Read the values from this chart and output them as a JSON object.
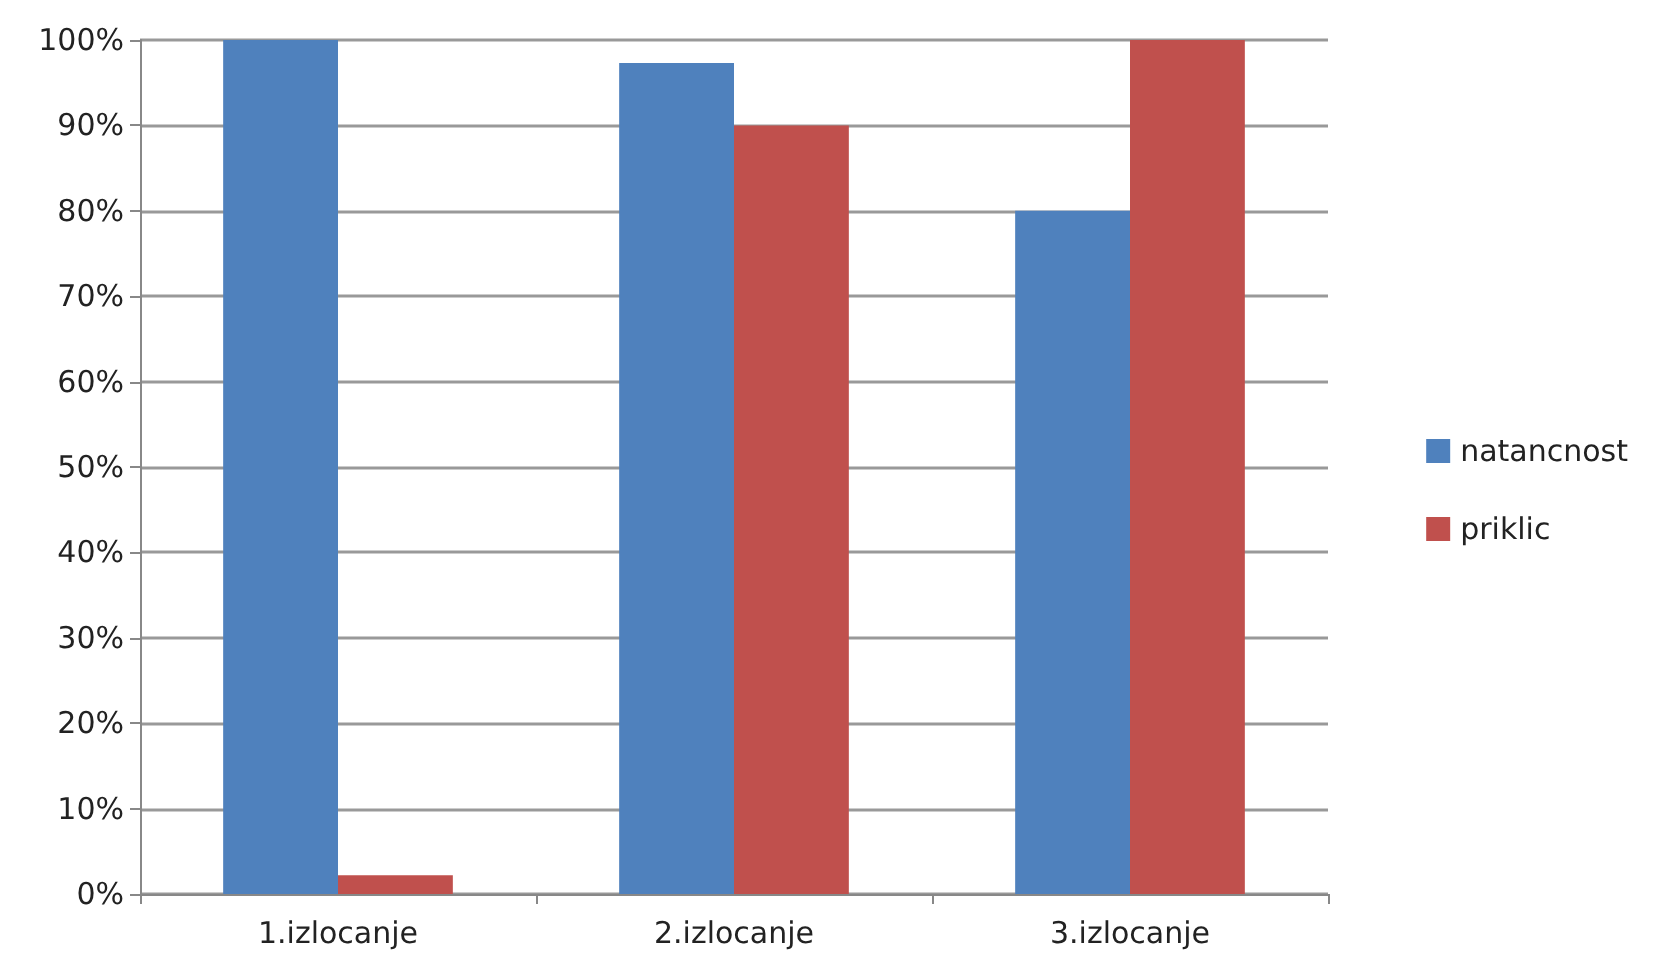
{
  "chart_data": {
    "type": "bar",
    "categories": [
      "1.izlocanje",
      "2.izlocanje",
      "3.izlocanje"
    ],
    "series": [
      {
        "name": "natancnost",
        "color": "#4f81bd",
        "values": [
          100,
          97.3,
          80
        ]
      },
      {
        "name": "priklic",
        "color": "#c0504d",
        "values": [
          2.2,
          90,
          100
        ]
      }
    ],
    "ylim": [
      0,
      100
    ],
    "yticks": [
      {
        "value": 0,
        "label": "0%"
      },
      {
        "value": 10,
        "label": "10%"
      },
      {
        "value": 20,
        "label": "20%"
      },
      {
        "value": 30,
        "label": "30%"
      },
      {
        "value": 40,
        "label": "40%"
      },
      {
        "value": 50,
        "label": "50%"
      },
      {
        "value": 60,
        "label": "60%"
      },
      {
        "value": 70,
        "label": "70%"
      },
      {
        "value": 80,
        "label": "80%"
      },
      {
        "value": 90,
        "label": "90%"
      },
      {
        "value": 100,
        "label": "100%"
      }
    ],
    "grid": "y",
    "legend": "right"
  }
}
